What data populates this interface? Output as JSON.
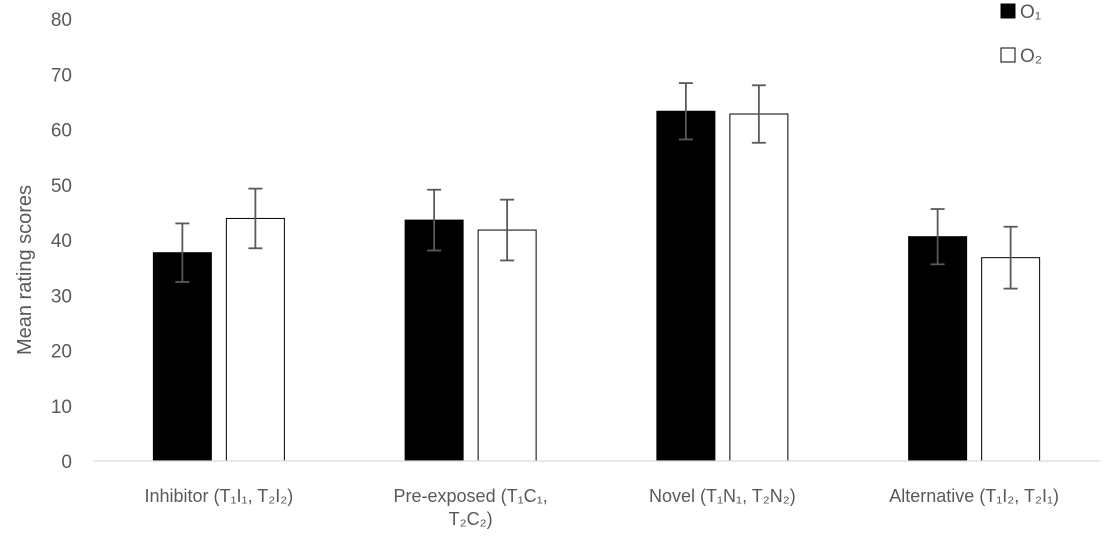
{
  "chart_data": {
    "type": "bar",
    "categories": [
      [
        "Inhibitor (T₁I₁, T₂I₂)"
      ],
      [
        "Pre-exposed (T₁C₁,",
        "T₂C₂)"
      ],
      [
        "Novel (T₁N₁, T₂N₂)"
      ],
      [
        "Alternative (T₁I₂, T₂I₁)"
      ]
    ],
    "series": [
      {
        "name": "O₁",
        "color": "#000000",
        "values": [
          37.7,
          43.6,
          63.3,
          40.6
        ],
        "error": [
          5.3,
          5.5,
          5.1,
          5.0
        ]
      },
      {
        "name": "O₂",
        "color": "#ffffff",
        "values": [
          43.9,
          41.8,
          62.8,
          36.8
        ],
        "error": [
          5.4,
          5.5,
          5.2,
          5.6
        ]
      }
    ],
    "ylabel": "Mean rating scores",
    "ylim": [
      0,
      80
    ],
    "yticks": [
      0,
      10,
      20,
      30,
      40,
      50,
      60,
      70,
      80
    ],
    "legend_position": "top-right",
    "grid": false
  }
}
